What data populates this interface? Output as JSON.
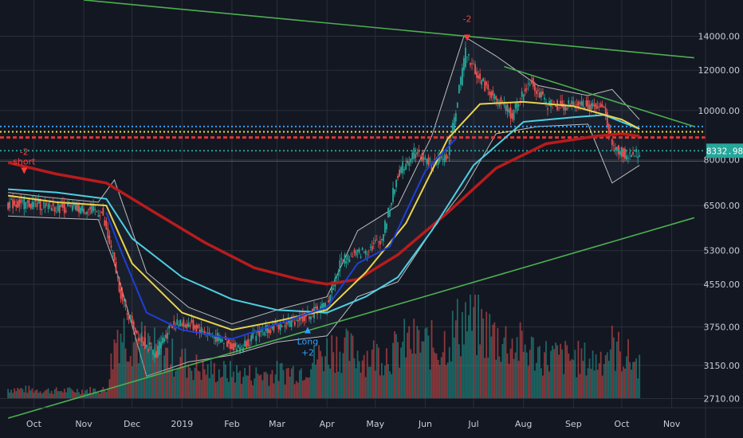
{
  "chart_data": {
    "type": "candlestick",
    "y_axis": {
      "scale": "log",
      "ticks": [
        "14000.00",
        "12000.00",
        "10000.00",
        "8000.00",
        "6500.00",
        "5300.00",
        "4550.00",
        "3750.00",
        "3150.00",
        "2710.00"
      ],
      "tick_values": [
        14000,
        12000,
        10000,
        8000,
        6500,
        5300,
        4550,
        3750,
        3150,
        2710
      ],
      "range": [
        2600,
        16500
      ]
    },
    "x_axis": {
      "ticks": [
        "Oct",
        "Nov",
        "Dec",
        "2019",
        "Feb",
        "Mar",
        "Apr",
        "May",
        "Jun",
        "Jul",
        "Aug",
        "Sep",
        "Oct",
        "Nov"
      ],
      "tick_dates": [
        "2018-10-01",
        "2018-11-01",
        "2018-12-01",
        "2019-01-01",
        "2019-02-01",
        "2019-03-01",
        "2019-04-01",
        "2019-05-01",
        "2019-06-01",
        "2019-07-01",
        "2019-08-01",
        "2019-09-01",
        "2019-10-01",
        "2019-11-01"
      ]
    },
    "last_price": {
      "label": "8332.98",
      "value": 8332.98,
      "color": "#26a69a"
    },
    "price": {
      "x": [
        "2018-09-15",
        "2018-10-01",
        "2018-10-15",
        "2018-11-01",
        "2018-11-12",
        "2018-11-20",
        "2018-11-25",
        "2018-12-05",
        "2018-12-15",
        "2018-12-25",
        "2019-01-05",
        "2019-01-20",
        "2019-02-05",
        "2019-02-20",
        "2019-03-05",
        "2019-03-20",
        "2019-04-01",
        "2019-04-10",
        "2019-04-25",
        "2019-05-05",
        "2019-05-15",
        "2019-05-25",
        "2019-06-05",
        "2019-06-15",
        "2019-06-26",
        "2019-07-05",
        "2019-07-15",
        "2019-07-25",
        "2019-08-05",
        "2019-08-15",
        "2019-08-25",
        "2019-09-05",
        "2019-09-20",
        "2019-09-25",
        "2019-10-05",
        "2019-10-12"
      ],
      "y": [
        6550,
        6550,
        6450,
        6400,
        6300,
        5000,
        4200,
        3600,
        3300,
        3800,
        3800,
        3600,
        3400,
        3700,
        3800,
        3950,
        4150,
        5100,
        5300,
        5600,
        7500,
        8300,
        7800,
        8200,
        13000,
        11500,
        10500,
        9800,
        11500,
        10300,
        10200,
        10300,
        10100,
        8500,
        8100,
        8332
      ]
    },
    "indicators": [
      {
        "type": "moving-average",
        "color": "#b71c1c",
        "x": [
          "2018-09-15",
          "2018-10-15",
          "2018-11-15",
          "2018-12-15",
          "2019-01-15",
          "2019-02-15",
          "2019-03-15",
          "2019-04-01",
          "2019-04-20",
          "2019-05-15",
          "2019-06-15",
          "2019-07-15",
          "2019-08-15",
          "2019-09-15",
          "2019-10-01",
          "2019-10-12"
        ],
        "y": [
          7900,
          7500,
          7200,
          6300,
          5500,
          4900,
          4650,
          4550,
          4650,
          5200,
          6300,
          7700,
          8600,
          8900,
          9000,
          8900
        ]
      },
      {
        "type": "moving-average",
        "color": "#4dd0e1",
        "x": [
          "2018-09-15",
          "2018-10-15",
          "2018-11-15",
          "2018-12-01",
          "2019-01-01",
          "2019-02-01",
          "2019-03-01",
          "2019-04-01",
          "2019-04-25",
          "2019-05-15",
          "2019-06-05",
          "2019-07-01",
          "2019-08-01",
          "2019-09-01",
          "2019-09-20",
          "2019-10-12"
        ],
        "y": [
          7000,
          6900,
          6700,
          5600,
          4700,
          4250,
          4050,
          4000,
          4300,
          4700,
          5800,
          7800,
          9500,
          9700,
          9800,
          9200
        ]
      },
      {
        "type": "moving-average",
        "color": "#e8d44d",
        "x": [
          "2018-09-15",
          "2018-10-15",
          "2018-11-15",
          "2018-12-01",
          "2019-01-01",
          "2019-02-01",
          "2019-03-01",
          "2019-04-01",
          "2019-04-25",
          "2019-05-20",
          "2019-06-15",
          "2019-07-05",
          "2019-08-01",
          "2019-09-01",
          "2019-10-01",
          "2019-10-12"
        ],
        "y": [
          6800,
          6600,
          6500,
          5000,
          4000,
          3700,
          3850,
          4050,
          4800,
          6000,
          8800,
          10300,
          10400,
          10200,
          9600,
          9200
        ]
      },
      {
        "type": "moving-average",
        "color": "#1e3fd6",
        "x": [
          "2018-11-15",
          "2018-11-25",
          "2018-12-10",
          "2019-01-01",
          "2019-02-01",
          "2019-03-01",
          "2019-04-01",
          "2019-04-20",
          "2019-05-10",
          "2019-06-01",
          "2019-06-20"
        ],
        "y": [
          6300,
          5200,
          4000,
          3700,
          3550,
          3800,
          4100,
          5000,
          5400,
          7600,
          8800
        ]
      }
    ],
    "bollinger_bands": {
      "color": "#d9d9d9",
      "x": [
        "2018-09-15",
        "2018-10-10",
        "2018-11-10",
        "2018-11-20",
        "2018-12-10",
        "2019-01-05",
        "2019-02-01",
        "2019-03-01",
        "2019-04-01",
        "2019-04-20",
        "2019-05-15",
        "2019-06-05",
        "2019-06-25",
        "2019-07-15",
        "2019-08-10",
        "2019-09-10",
        "2019-09-25",
        "2019-10-12"
      ],
      "upper": [
        6900,
        6750,
        6600,
        7300,
        4800,
        4100,
        3800,
        4050,
        4300,
        5800,
        6500,
        8900,
        14000,
        12800,
        11200,
        10700,
        11000,
        9600
      ],
      "lower": [
        6200,
        6150,
        6100,
        5000,
        3000,
        3200,
        3300,
        3500,
        3600,
        4300,
        4600,
        5800,
        7000,
        9000,
        9300,
        9400,
        7200,
        7800
      ]
    },
    "horizontal_levels": [
      {
        "value": 9300,
        "color": "#42a5f5",
        "style": "dotted"
      },
      {
        "value": 9080,
        "color": "#ffeb3b",
        "style": "dotted"
      },
      {
        "value": 8850,
        "color": "#e53935",
        "style": "dashed"
      },
      {
        "value": 8332.98,
        "color": "#26a69a",
        "style": "dotted"
      },
      {
        "value": 7950,
        "color": "#9e9e9e",
        "style": "solid"
      }
    ],
    "trendlines": [
      {
        "color": "#4caf50",
        "x": [
          "2018-11-01",
          "2019-11-15"
        ],
        "y": [
          16500,
          12700
        ]
      },
      {
        "color": "#4caf50",
        "x": [
          "2019-07-20",
          "2019-11-15"
        ],
        "y": [
          12200,
          9300
        ]
      },
      {
        "color": "#4caf50",
        "x": [
          "2018-09-15",
          "2019-11-15"
        ],
        "y": [
          2480,
          6150
        ]
      }
    ],
    "signals": [
      {
        "date": "2018-09-25",
        "price": 7500,
        "direction": "sell",
        "color": "#ff3b3b",
        "text_top": "-2",
        "text_bottom": "short"
      },
      {
        "date": "2019-03-20",
        "price": 3750,
        "direction": "buy",
        "color": "#2aa3ff",
        "text_top": "Long",
        "text_bottom": "+2"
      },
      {
        "date": "2019-06-27",
        "price": 13700,
        "direction": "sell",
        "color": "#ff3b3b",
        "text_top": "-2",
        "text_bottom": ""
      }
    ],
    "volume": {
      "up_color": "#26a69a",
      "down_color": "#ef5350",
      "x": [
        "2018-09-15",
        "2018-10-15",
        "2018-11-15",
        "2018-11-22",
        "2018-12-10",
        "2019-01-15",
        "2019-02-15",
        "2019-03-15",
        "2019-04-05",
        "2019-04-25",
        "2019-05-15",
        "2019-05-20",
        "2019-06-10",
        "2019-06-26",
        "2019-07-15",
        "2019-08-15",
        "2019-09-15",
        "2019-09-25",
        "2019-10-12"
      ],
      "y": [
        0.1,
        0.08,
        0.09,
        0.75,
        0.55,
        0.3,
        0.25,
        0.3,
        0.55,
        0.45,
        0.5,
        0.6,
        0.55,
        0.85,
        0.65,
        0.45,
        0.4,
        0.55,
        0.35
      ]
    }
  }
}
